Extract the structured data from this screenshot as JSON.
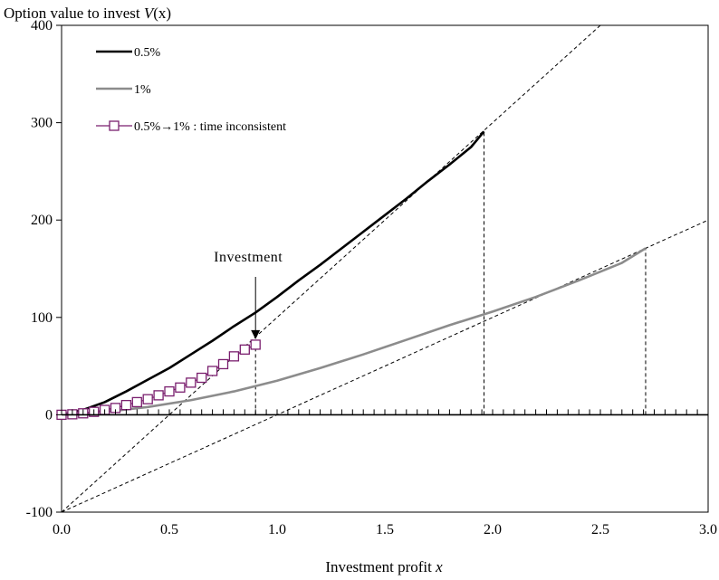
{
  "chart_data": {
    "type": "line",
    "title": "",
    "ylabel_main": "Option value to invest ",
    "ylabel_var": "V",
    "ylabel_rest": "(x)",
    "xlabel_main": "Investment profit ",
    "xlabel_var": "x",
    "xlim": [
      0,
      3
    ],
    "ylim": [
      -100,
      400
    ],
    "x_ticks": [
      0,
      0.5,
      1,
      1.5,
      2,
      2.5,
      3
    ],
    "x_tick_labels": [
      "0.0",
      "0.5",
      "1.0",
      "1.5",
      "2.0",
      "2.5",
      "3.0"
    ],
    "y_ticks": [
      -100,
      0,
      100,
      200,
      300,
      400
    ],
    "y_tick_labels": [
      "-100",
      "0",
      "100",
      "200",
      "300",
      "400"
    ],
    "grid": false,
    "legend_position": "top-left",
    "series": [
      {
        "name": "0.5%",
        "color": "#000000",
        "style": "solid-thick",
        "x": [
          0.0,
          0.1,
          0.2,
          0.3,
          0.4,
          0.5,
          0.6,
          0.7,
          0.8,
          0.9,
          1.0,
          1.1,
          1.2,
          1.3,
          1.4,
          1.5,
          1.6,
          1.7,
          1.8,
          1.9,
          1.96
        ],
        "y": [
          0,
          5,
          13,
          24,
          36,
          48,
          62,
          76,
          91,
          105,
          121,
          138,
          154,
          171,
          188,
          205,
          222,
          240,
          257,
          275,
          291
        ]
      },
      {
        "name": "1%",
        "color": "#808080",
        "style": "solid-thick",
        "x": [
          0.0,
          0.2,
          0.4,
          0.6,
          0.8,
          1.0,
          1.2,
          1.4,
          1.6,
          1.8,
          2.0,
          2.2,
          2.4,
          2.6,
          2.71
        ],
        "y": [
          0,
          3,
          8,
          15,
          24,
          35,
          48,
          62,
          77,
          92,
          106,
          121,
          138,
          156,
          171
        ]
      },
      {
        "name": "0.5%→1% : time inconsistent",
        "color": "#7a1f6e",
        "style": "solid-markers",
        "x": [
          0.0,
          0.05,
          0.1,
          0.15,
          0.2,
          0.25,
          0.3,
          0.35,
          0.4,
          0.45,
          0.5,
          0.55,
          0.6,
          0.65,
          0.7,
          0.75,
          0.8,
          0.85,
          0.9
        ],
        "y": [
          0,
          0.5,
          1.5,
          3,
          5,
          7,
          10,
          13,
          16,
          20,
          24,
          28,
          33,
          38,
          45,
          52,
          60,
          67,
          72
        ]
      }
    ],
    "reference_lines": [
      {
        "kind": "payoff",
        "x": [
          0,
          2.5
        ],
        "y": [
          -100,
          400
        ]
      },
      {
        "kind": "payoff",
        "x": [
          0,
          3
        ],
        "y": [
          -100,
          200
        ]
      },
      {
        "kind": "trigger",
        "x": [
          0.9,
          0.9
        ],
        "y": [
          0,
          72
        ]
      },
      {
        "kind": "trigger",
        "x": [
          1.96,
          1.96
        ],
        "y": [
          0,
          291
        ]
      },
      {
        "kind": "trigger",
        "x": [
          2.71,
          2.71
        ],
        "y": [
          0,
          171
        ]
      }
    ],
    "annotation": {
      "text": "Investment",
      "x": 0.9,
      "y": 72
    }
  }
}
